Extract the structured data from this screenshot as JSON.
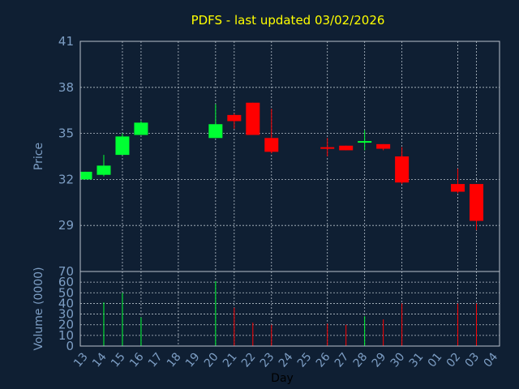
{
  "chart_data": [
    {
      "type": "candlestick",
      "title": "PDFS - last updated 03/02/2026",
      "ylabel": "Price",
      "ylim": [
        26,
        41
      ],
      "yticks": [
        "41",
        "38",
        "35",
        "32",
        "29"
      ],
      "grid": true,
      "up_color": "#00ff33",
      "down_color": "#ff0000",
      "candles": [
        {
          "day": "13",
          "open": 32.0,
          "close": 32.5,
          "high": 32.5,
          "low": 32.0
        },
        {
          "day": "14",
          "open": 32.3,
          "close": 32.9,
          "high": 33.6,
          "low": 32.2
        },
        {
          "day": "15",
          "open": 33.6,
          "close": 34.8,
          "high": 35.0,
          "low": 33.6
        },
        {
          "day": "16",
          "open": 34.9,
          "close": 35.7,
          "high": 35.8,
          "low": 34.9
        },
        {
          "day": "20",
          "open": 34.7,
          "close": 35.6,
          "high": 36.9,
          "low": 34.7
        },
        {
          "day": "21",
          "open": 36.2,
          "close": 35.8,
          "high": 36.3,
          "low": 35.3
        },
        {
          "day": "22",
          "open": 37.0,
          "close": 34.9,
          "high": 37.0,
          "low": 34.9
        },
        {
          "day": "23",
          "open": 34.7,
          "close": 33.8,
          "high": 36.6,
          "low": 33.7
        },
        {
          "day": "26",
          "open": 34.1,
          "close": 34.0,
          "high": 34.7,
          "low": 33.5
        },
        {
          "day": "27",
          "open": 34.2,
          "close": 33.9,
          "high": 34.2,
          "low": 33.9
        },
        {
          "day": "28",
          "open": 34.4,
          "close": 34.5,
          "high": 35.2,
          "low": 33.9
        },
        {
          "day": "29",
          "open": 34.3,
          "close": 34.0,
          "high": 34.3,
          "low": 33.9
        },
        {
          "day": "30",
          "open": 33.5,
          "close": 31.8,
          "high": 34.1,
          "low": 31.7
        },
        {
          "day": "02",
          "open": 31.7,
          "close": 31.2,
          "high": 32.7,
          "low": 31.1
        },
        {
          "day": "03",
          "open": 31.7,
          "close": 29.3,
          "high": 31.7,
          "low": 28.7
        }
      ]
    },
    {
      "type": "bar",
      "xlabel": "Day",
      "ylabel": "Volume (0000)",
      "ylim": [
        0,
        70
      ],
      "yticks": [
        "70",
        "60",
        "50",
        "40",
        "30",
        "20",
        "10",
        "0"
      ],
      "categories": [
        "13",
        "14",
        "15",
        "16",
        "17",
        "18",
        "19",
        "20",
        "21",
        "22",
        "23",
        "24",
        "25",
        "26",
        "27",
        "28",
        "29",
        "30",
        "31",
        "01",
        "02",
        "03",
        "04"
      ],
      "volumes": [
        {
          "day": "14",
          "value": 41,
          "dir": "up"
        },
        {
          "day": "15",
          "value": 50,
          "dir": "up"
        },
        {
          "day": "16",
          "value": 27,
          "dir": "up"
        },
        {
          "day": "20",
          "value": 61,
          "dir": "up"
        },
        {
          "day": "21",
          "value": 36,
          "dir": "down"
        },
        {
          "day": "22",
          "value": 22,
          "dir": "down"
        },
        {
          "day": "23",
          "value": 20,
          "dir": "down"
        },
        {
          "day": "26",
          "value": 21,
          "dir": "down"
        },
        {
          "day": "27",
          "value": 20,
          "dir": "down"
        },
        {
          "day": "28",
          "value": 28,
          "dir": "up"
        },
        {
          "day": "29",
          "value": 25,
          "dir": "down"
        },
        {
          "day": "30",
          "value": 40,
          "dir": "down"
        },
        {
          "day": "02",
          "value": 40,
          "dir": "down"
        },
        {
          "day": "03",
          "value": 40,
          "dir": "down"
        }
      ]
    }
  ]
}
